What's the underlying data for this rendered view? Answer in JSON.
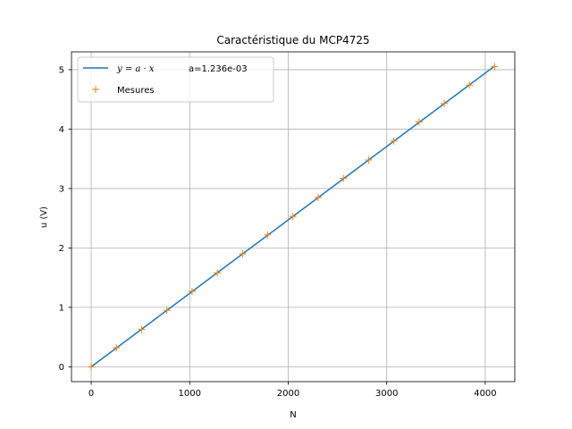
{
  "chart_data": {
    "type": "line",
    "title": "Caractéristique du MCP4725",
    "xlabel": "N",
    "ylabel": "u (V)",
    "xlim": [
      -200,
      4300
    ],
    "ylim": [
      -0.25,
      5.3
    ],
    "xticks": [
      0,
      1000,
      2000,
      3000,
      4000
    ],
    "xtick_labels": [
      "0",
      "1000",
      "2000",
      "3000",
      "4000"
    ],
    "yticks": [
      0,
      1,
      2,
      3,
      4,
      5
    ],
    "ytick_labels": [
      "0",
      "1",
      "2",
      "3",
      "4",
      "5"
    ],
    "grid": true,
    "legend_position": "top-left",
    "series": [
      {
        "name": "y = a·x      a=1.236e-03",
        "kind": "line",
        "color": "#1f77b4",
        "x": [
          0,
          4095
        ],
        "y": [
          0,
          5.06
        ]
      },
      {
        "name": "Mesures",
        "kind": "scatter",
        "marker": "+",
        "color": "#ff7f0e",
        "x": [
          0,
          256,
          512,
          768,
          1024,
          1280,
          1536,
          1792,
          2048,
          2304,
          2560,
          2816,
          3072,
          3328,
          3584,
          3840,
          4095
        ],
        "y": [
          0.0,
          0.32,
          0.63,
          0.95,
          1.27,
          1.58,
          1.9,
          2.22,
          2.53,
          2.85,
          3.17,
          3.48,
          3.8,
          4.12,
          4.43,
          4.74,
          5.05
        ]
      }
    ]
  },
  "legend": {
    "line_math": "y = a · x",
    "line_param": "a=1.236e-03",
    "scatter_label": "Mesures"
  }
}
